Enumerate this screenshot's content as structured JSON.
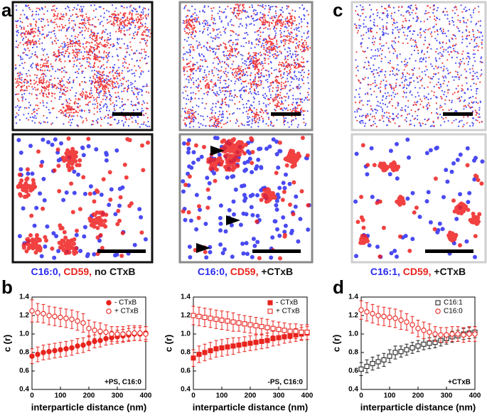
{
  "labels": [
    "a",
    "b",
    "c",
    "d"
  ],
  "captions": [
    [
      "C16:0,",
      "CD59,",
      "no CTxB"
    ],
    [
      "C16:0,",
      "CD59,",
      "+CTxB"
    ],
    [
      "C16:1,",
      "CD59,",
      "+CTxB"
    ]
  ],
  "chart_data": [
    {
      "type": "scatter",
      "xlabel": "interparticle distance (nm)",
      "ylabel": "c (r)",
      "annotation": "+PS, C16:0",
      "x": [
        0,
        20,
        40,
        60,
        80,
        100,
        120,
        140,
        160,
        180,
        200,
        220,
        240,
        260,
        280,
        300,
        320,
        340,
        360,
        380,
        400
      ],
      "series": [
        {
          "name": "- CTxB",
          "color": "#e8221c",
          "marker": "circle",
          "filled": true,
          "values": [
            0.76,
            0.78,
            0.8,
            0.81,
            0.82,
            0.83,
            0.84,
            0.85,
            0.87,
            0.88,
            0.9,
            0.92,
            0.93,
            0.95,
            0.96,
            0.97,
            0.98,
            0.99,
            1.0,
            1.0,
            1.01
          ],
          "errors": [
            0.08,
            0.08,
            0.08,
            0.08,
            0.08,
            0.08,
            0.08,
            0.08,
            0.08,
            0.08,
            0.08,
            0.07,
            0.07,
            0.07,
            0.07,
            0.07,
            0.07,
            0.07,
            0.07,
            0.07,
            0.07
          ]
        },
        {
          "name": "+ CTxB",
          "color": "#e8221c",
          "marker": "circle",
          "filled": false,
          "values": [
            1.25,
            1.23,
            1.22,
            1.2,
            1.19,
            1.18,
            1.17,
            1.16,
            1.14,
            1.12,
            1.06,
            1.04,
            1.03,
            1.02,
            1.0,
            1.0,
            1.0,
            1.01,
            1.01,
            1.01,
            1.0
          ],
          "errors": [
            0.12,
            0.1,
            0.1,
            0.1,
            0.1,
            0.1,
            0.1,
            0.1,
            0.1,
            0.1,
            0.09,
            0.09,
            0.09,
            0.08,
            0.08,
            0.08,
            0.08,
            0.08,
            0.08,
            0.08,
            0.08
          ]
        }
      ],
      "xlim": [
        0,
        400
      ],
      "xticks": [
        0,
        100,
        200,
        300,
        400
      ],
      "ylim": [
        0.4,
        1.4
      ],
      "yticks": [
        0.4,
        0.6,
        0.8,
        {
          "value": 1,
          "label": "1.0"
        },
        1.2,
        1.4
      ]
    },
    {
      "type": "scatter",
      "xlabel": "interparticle distance (nm)",
      "ylabel": "c (r)",
      "annotation": "-PS, C16:0",
      "x": [
        0,
        20,
        40,
        60,
        80,
        100,
        120,
        140,
        160,
        180,
        200,
        220,
        240,
        260,
        280,
        300,
        320,
        340,
        360,
        380,
        400
      ],
      "series": [
        {
          "name": "- CTxB",
          "color": "#e8221c",
          "marker": "square",
          "filled": true,
          "values": [
            0.74,
            0.78,
            0.8,
            0.82,
            0.84,
            0.85,
            0.86,
            0.87,
            0.88,
            0.89,
            0.9,
            0.91,
            0.92,
            0.93,
            0.95,
            0.96,
            0.97,
            0.98,
            0.99,
            1.0,
            1.01
          ],
          "errors": [
            0.09,
            0.09,
            0.09,
            0.09,
            0.09,
            0.09,
            0.09,
            0.09,
            0.08,
            0.08,
            0.08,
            0.08,
            0.08,
            0.08,
            0.08,
            0.08,
            0.07,
            0.07,
            0.07,
            0.07,
            0.07
          ]
        },
        {
          "name": "+ CTxB",
          "color": "#e8221c",
          "marker": "square",
          "filled": false,
          "values": [
            1.2,
            1.19,
            1.18,
            1.17,
            1.16,
            1.15,
            1.14,
            1.13,
            1.12,
            1.11,
            1.1,
            1.09,
            1.08,
            1.07,
            1.06,
            1.05,
            1.04,
            1.03,
            1.03,
            1.02,
            1.02
          ],
          "errors": [
            0.1,
            0.1,
            0.1,
            0.1,
            0.1,
            0.1,
            0.1,
            0.1,
            0.09,
            0.09,
            0.09,
            0.09,
            0.09,
            0.09,
            0.08,
            0.08,
            0.08,
            0.08,
            0.08,
            0.08,
            0.08
          ]
        }
      ],
      "xlim": [
        0,
        400
      ],
      "xticks": [
        0,
        100,
        200,
        300,
        400
      ],
      "ylim": [
        0.4,
        1.4
      ],
      "yticks": [
        0.4,
        0.6,
        0.8,
        {
          "value": 1,
          "label": "1.0"
        },
        1.2,
        1.4
      ]
    },
    {
      "type": "scatter",
      "xlabel": "interparticle distance (nm)",
      "ylabel": "c (r)",
      "annotation": "+CTxB",
      "x": [
        0,
        20,
        40,
        60,
        80,
        100,
        120,
        140,
        160,
        180,
        200,
        220,
        240,
        260,
        280,
        300,
        320,
        340,
        360,
        380,
        400
      ],
      "series": [
        {
          "name": "C16:1",
          "color": "#222222",
          "marker": "square",
          "filled": false,
          "values": [
            0.62,
            0.65,
            0.68,
            0.7,
            0.72,
            0.76,
            0.8,
            0.81,
            0.83,
            0.85,
            0.87,
            0.89,
            0.9,
            0.91,
            0.93,
            0.95,
            0.97,
            0.98,
            1.0,
            1.01,
            1.02
          ],
          "errors": [
            0.07,
            0.07,
            0.07,
            0.07,
            0.07,
            0.07,
            0.07,
            0.06,
            0.06,
            0.06,
            0.06,
            0.06,
            0.06,
            0.06,
            0.06,
            0.06,
            0.06,
            0.06,
            0.06,
            0.06,
            0.06
          ]
        },
        {
          "name": "C16:0",
          "color": "#e8221c",
          "marker": "circle",
          "filled": false,
          "values": [
            1.26,
            1.24,
            1.22,
            1.2,
            1.19,
            1.18,
            1.17,
            1.15,
            1.13,
            1.1,
            1.06,
            1.04,
            1.02,
            1.0,
            0.99,
            0.99,
            1.0,
            1.0,
            0.99,
            1.0,
            1.0
          ],
          "errors": [
            0.1,
            0.1,
            0.1,
            0.1,
            0.1,
            0.1,
            0.1,
            0.1,
            0.09,
            0.09,
            0.09,
            0.09,
            0.09,
            0.08,
            0.08,
            0.08,
            0.08,
            0.08,
            0.08,
            0.08,
            0.08
          ]
        }
      ],
      "xlim": [
        0,
        400
      ],
      "xticks": [
        0,
        100,
        200,
        300,
        400
      ],
      "ylim": [
        0.4,
        1.4
      ],
      "yticks": [
        0.4,
        0.6,
        0.8,
        {
          "value": 1,
          "label": "1.0"
        },
        1.2,
        1.4
      ]
    }
  ]
}
